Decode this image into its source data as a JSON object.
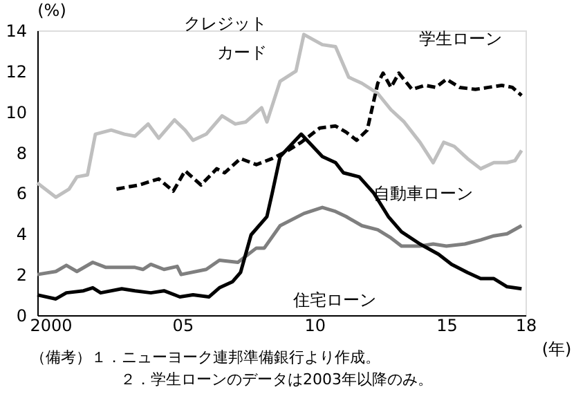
{
  "chart_data": {
    "type": "line",
    "ylabel": "(%)",
    "xlabel": "(年)",
    "xlim": [
      1999.5,
      2018.0
    ],
    "xticks": [
      {
        "value": 2000,
        "label": "2000"
      },
      {
        "value": 2005,
        "label": "05"
      },
      {
        "value": 2010,
        "label": "10"
      },
      {
        "value": 2015,
        "label": "15"
      },
      {
        "value": 2018,
        "label": "18"
      }
    ],
    "ylim": [
      0,
      14
    ],
    "yticks": [
      0,
      2,
      4,
      6,
      8,
      10,
      12,
      14
    ],
    "grid": false,
    "marker": "none",
    "series": [
      {
        "color": "#bfbfbf",
        "line_style": "solid",
        "x": [
          1999.5,
          2000.2,
          2000.7,
          2001.0,
          2001.4,
          2001.7,
          2002.3,
          2002.8,
          2003.2,
          2003.7,
          2004.1,
          2004.7,
          2005.1,
          2005.4,
          2005.9,
          2006.5,
          2007.0,
          2007.4,
          2008.0,
          2008.2,
          2008.7,
          2009.3,
          2009.6,
          2010.3,
          2010.8,
          2011.3,
          2011.8,
          2012.4,
          2012.9,
          2013.4,
          2014.0,
          2014.5,
          2014.9,
          2015.3,
          2015.8,
          2016.3,
          2016.8,
          2017.3,
          2017.6,
          2017.85
        ],
        "values": [
          6.5,
          5.8,
          6.2,
          6.8,
          6.9,
          8.9,
          9.1,
          8.9,
          8.8,
          9.4,
          8.7,
          9.6,
          9.1,
          8.6,
          8.9,
          9.8,
          9.4,
          9.5,
          10.2,
          9.5,
          11.5,
          12.0,
          13.8,
          13.3,
          13.2,
          11.7,
          11.4,
          10.9,
          10.1,
          9.5,
          8.5,
          7.5,
          8.5,
          8.3,
          7.7,
          7.2,
          7.5,
          7.5,
          7.6,
          8.1
        ]
      },
      {
        "color": "#000000",
        "line_style": "dashed",
        "x": [
          2002.5,
          2003.35,
          2004.1,
          2004.65,
          2005.1,
          2005.7,
          2006.3,
          2006.6,
          2007.2,
          2007.8,
          2008.4,
          2009.0,
          2009.5,
          2010.2,
          2010.8,
          2011.2,
          2011.6,
          2012.0,
          2012.4,
          2012.6,
          2012.9,
          2013.2,
          2013.7,
          2014.2,
          2014.6,
          2015.0,
          2015.5,
          2016.1,
          2016.6,
          2017.1,
          2017.5,
          2017.85
        ],
        "values": [
          6.2,
          6.4,
          6.7,
          6.1,
          7.1,
          6.4,
          7.2,
          7.0,
          7.7,
          7.4,
          7.7,
          8.1,
          8.5,
          9.2,
          9.3,
          9.0,
          8.6,
          9.1,
          11.4,
          11.9,
          11.2,
          11.9,
          11.1,
          11.3,
          11.2,
          11.6,
          11.2,
          11.1,
          11.2,
          11.3,
          11.2,
          10.8
        ]
      },
      {
        "color": "#7f7f7f",
        "line_style": "solid",
        "x": [
          1999.5,
          2000.2,
          2000.6,
          2001.0,
          2001.6,
          2002.1,
          2003.2,
          2003.5,
          2003.8,
          2004.3,
          2004.8,
          2004.95,
          2005.9,
          2006.4,
          2007.1,
          2007.8,
          2008.1,
          2008.7,
          2009.6,
          2010.3,
          2010.8,
          2011.2,
          2011.8,
          2012.4,
          2012.9,
          2013.3,
          2014.0,
          2014.5,
          2015.0,
          2015.7,
          2016.3,
          2016.8,
          2017.3,
          2017.85
        ],
        "values": [
          2.0,
          2.15,
          2.45,
          2.15,
          2.6,
          2.35,
          2.35,
          2.25,
          2.5,
          2.25,
          2.4,
          2.0,
          2.25,
          2.7,
          2.6,
          3.3,
          3.3,
          4.4,
          5.0,
          5.3,
          5.1,
          4.85,
          4.4,
          4.2,
          3.8,
          3.4,
          3.4,
          3.5,
          3.4,
          3.5,
          3.7,
          3.9,
          4.0,
          4.4
        ]
      },
      {
        "color": "#000000",
        "line_style": "solid",
        "x": [
          1999.5,
          2000.2,
          2000.6,
          2001.25,
          2001.6,
          2001.9,
          2002.7,
          2003.2,
          2003.8,
          2004.3,
          2004.9,
          2005.4,
          2006.0,
          2006.4,
          2006.9,
          2007.2,
          2007.6,
          2008.2,
          2008.4,
          2008.7,
          2009.1,
          2009.5,
          2010.3,
          2010.8,
          2011.1,
          2011.7,
          2012.25,
          2012.8,
          2013.3,
          2014.0,
          2014.7,
          2015.2,
          2015.8,
          2016.3,
          2016.8,
          2017.3,
          2017.85
        ],
        "values": [
          1.0,
          0.8,
          1.1,
          1.2,
          1.35,
          1.1,
          1.3,
          1.2,
          1.1,
          1.2,
          0.9,
          1.0,
          0.9,
          1.35,
          1.65,
          2.1,
          3.95,
          4.85,
          6.0,
          7.8,
          8.35,
          8.9,
          7.8,
          7.5,
          7.0,
          6.8,
          6.0,
          4.85,
          4.1,
          3.5,
          3.0,
          2.5,
          2.1,
          1.8,
          1.8,
          1.4,
          1.3
        ]
      }
    ],
    "annotations": [
      "クレジット",
      "カード",
      "学生ローン",
      "自動車ローン",
      "住宅ローン",
      "（備考）１．ニューヨーク連邦準備銀行より作成。",
      "２．学生ローンのデータは2003年以降のみ。"
    ]
  }
}
